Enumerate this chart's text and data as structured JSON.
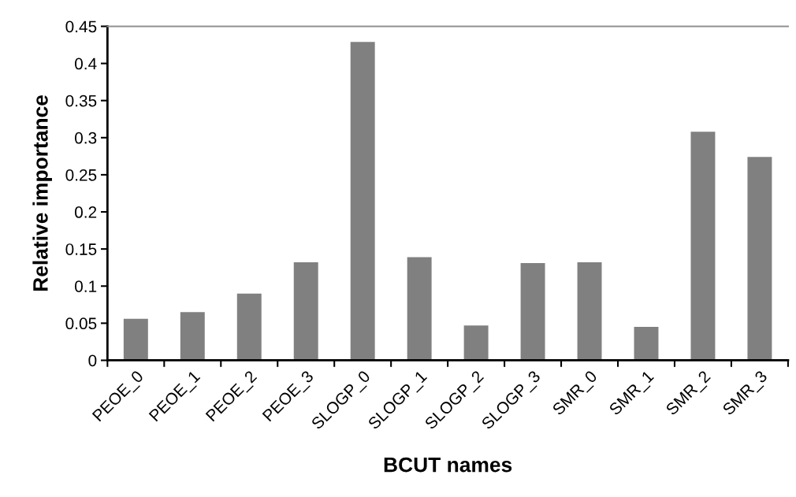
{
  "chart_data": {
    "type": "bar",
    "xlabel": "BCUT names",
    "ylabel": "Relative importance",
    "categories": [
      "PEOE_0",
      "PEOE_1",
      "PEOE_2",
      "PEOE_3",
      "SLOGP_0",
      "SLOGP_1",
      "SLOGP_2",
      "SLOGP_3",
      "SMR_0",
      "SMR_1",
      "SMR_2",
      "SMR_3"
    ],
    "values": [
      0.056,
      0.065,
      0.09,
      0.132,
      0.429,
      0.139,
      0.047,
      0.131,
      0.132,
      0.045,
      0.308,
      0.274
    ],
    "color": "#808080",
    "ylim": [
      0,
      0.45
    ],
    "yticks": [
      {
        "value": 0,
        "label": "0"
      },
      {
        "value": 0.05,
        "label": "0.05"
      },
      {
        "value": 0.1,
        "label": "0.1"
      },
      {
        "value": 0.15,
        "label": "0.15"
      },
      {
        "value": 0.2,
        "label": "0.2"
      },
      {
        "value": 0.25,
        "label": "0.25"
      },
      {
        "value": 0.3,
        "label": "0.3"
      },
      {
        "value": 0.35,
        "label": "0.35"
      },
      {
        "value": 0.4,
        "label": "0.4"
      },
      {
        "value": 0.45,
        "label": "0.45"
      }
    ],
    "grid": false
  }
}
